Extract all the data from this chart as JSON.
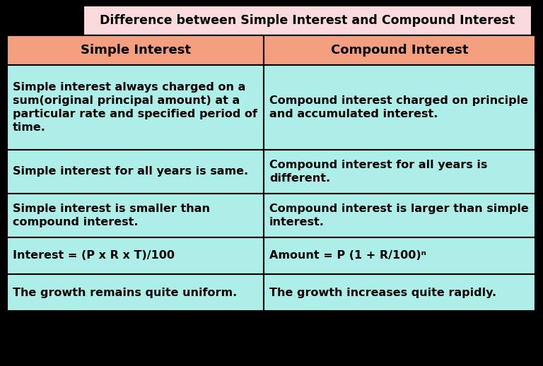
{
  "title": "Difference between Simple Interest and Compound Interest",
  "title_bg": "#FADADD",
  "header_bg": "#F4A080",
  "cell_bg": "#AEEEE8",
  "border_color": "#000000",
  "text_color": "#000000",
  "outer_bg": "#000000",
  "headers": [
    "Simple Interest",
    "Compound Interest"
  ],
  "rows": [
    [
      "Simple interest always charged on a\nsum(original principal amount) at a\nparticular rate and specified period of\ntime.",
      "Compound interest charged on principle\nand accumulated interest."
    ],
    [
      "Simple interest for all years is same.",
      "Compound interest for all years is\ndifferent."
    ],
    [
      "Simple interest is smaller than\ncompound interest.",
      "Compound interest is larger than simple\ninterest."
    ],
    [
      "Interest = (P x R x T)/100",
      "Amount = P (1 + R/100)ⁿ"
    ],
    [
      "The growth remains quite uniform.",
      "The growth increases quite rapidly."
    ]
  ],
  "title_fontsize": 12.5,
  "header_fontsize": 13,
  "cell_fontsize": 11.5
}
